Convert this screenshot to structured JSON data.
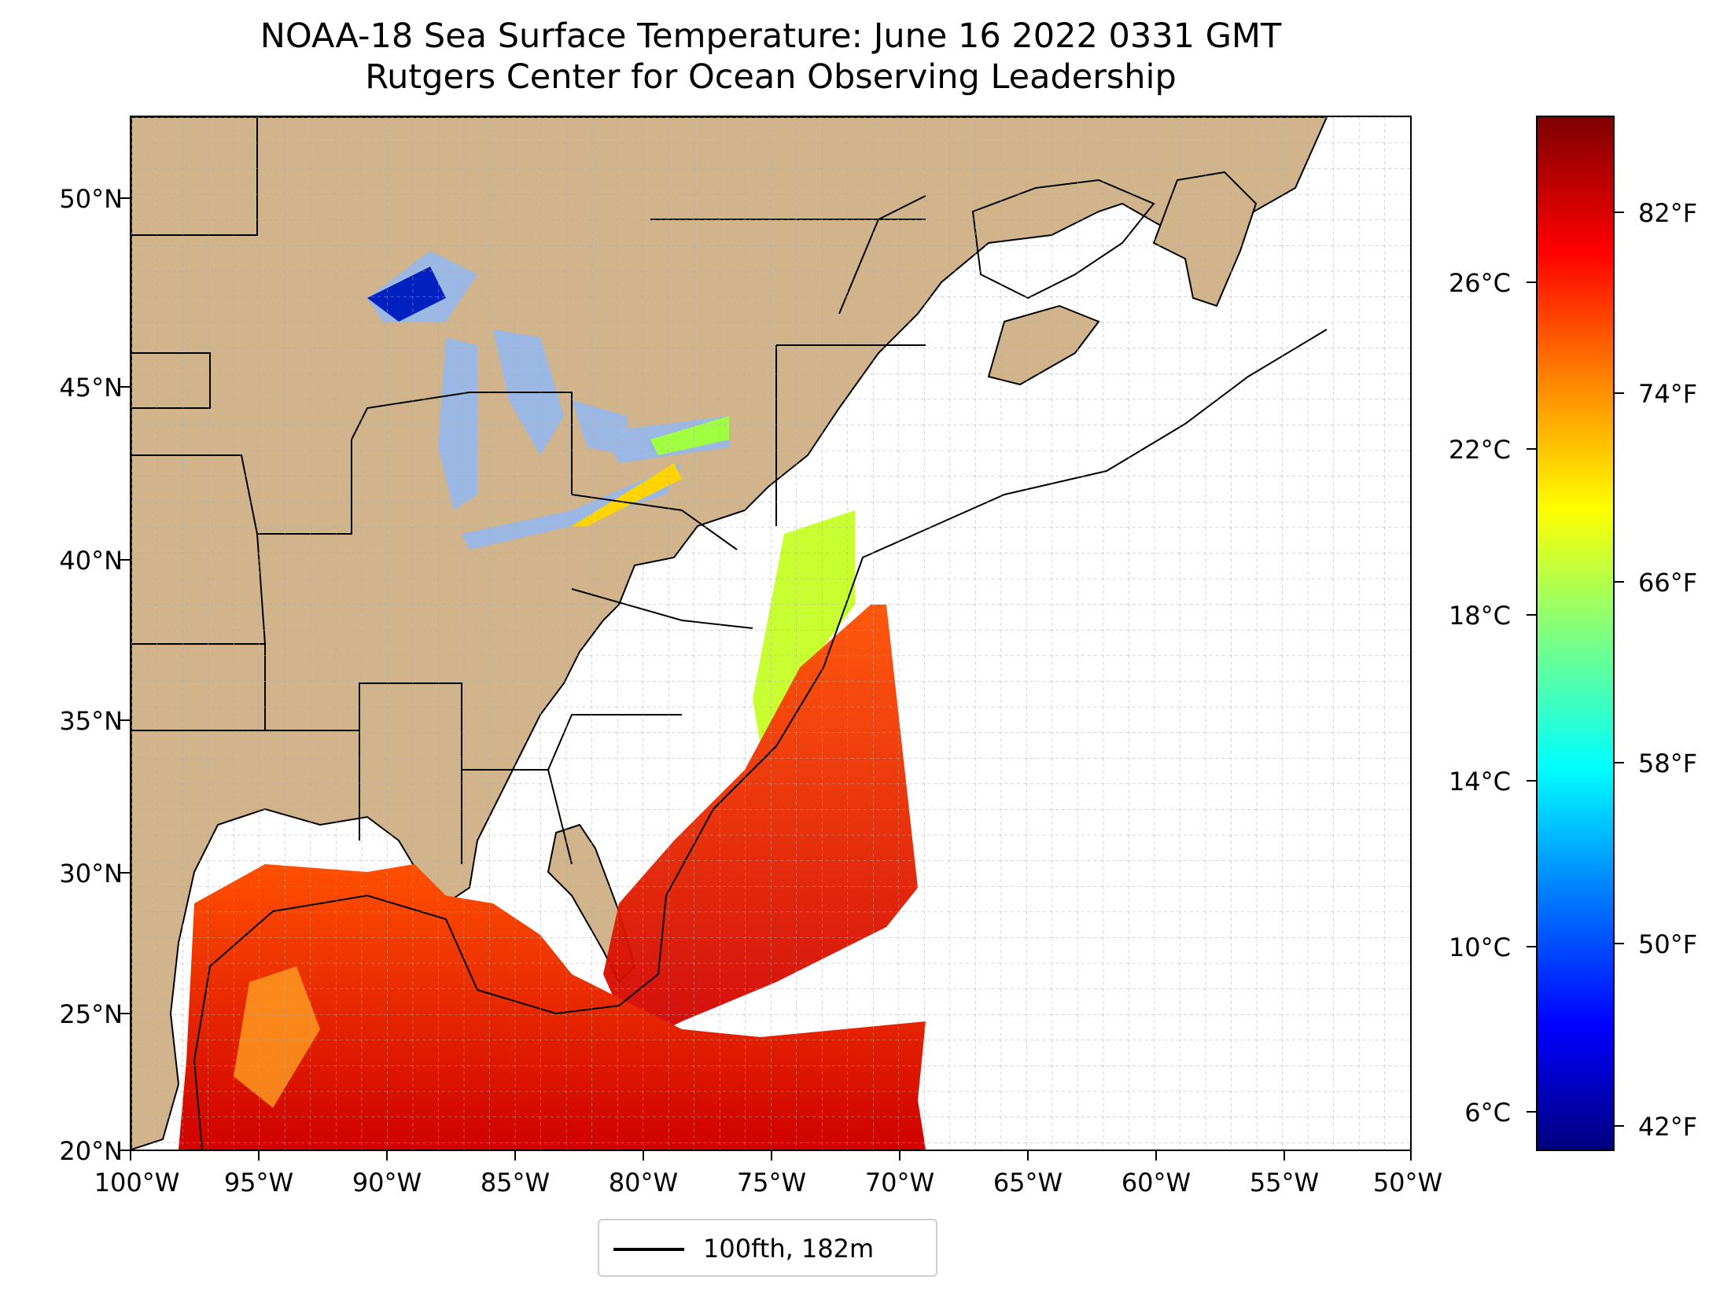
{
  "title": {
    "line1": "NOAA-18 Sea Surface Temperature: June 16 2022 0331 GMT",
    "line2": "Rutgers Center for Ocean Observing Leadership"
  },
  "map": {
    "lat_ticks": [
      "50°N",
      "45°N",
      "40°N",
      "35°N",
      "30°N",
      "25°N",
      "20°N"
    ],
    "lon_ticks": [
      "100°W",
      "95°W",
      "90°W",
      "85°W",
      "80°W",
      "75°W",
      "70°W",
      "65°W",
      "60°W",
      "55°W",
      "50°W"
    ],
    "extent": {
      "lon": [
        -100,
        -50
      ],
      "lat": [
        20,
        52.2
      ]
    },
    "land_color": "#d2b48c",
    "lake_color": "#9ab8e3",
    "grid": true
  },
  "legend": {
    "label": "100fth, 182m",
    "line_color": "#000000"
  },
  "colorbar": {
    "colormap": "jet",
    "celsius_ticks": [
      "26°C",
      "22°C",
      "18°C",
      "14°C",
      "10°C",
      "6°C"
    ],
    "fahrenheit_ticks": [
      "82°F",
      "74°F",
      "66°F",
      "58°F",
      "50°F",
      "42°F"
    ]
  }
}
